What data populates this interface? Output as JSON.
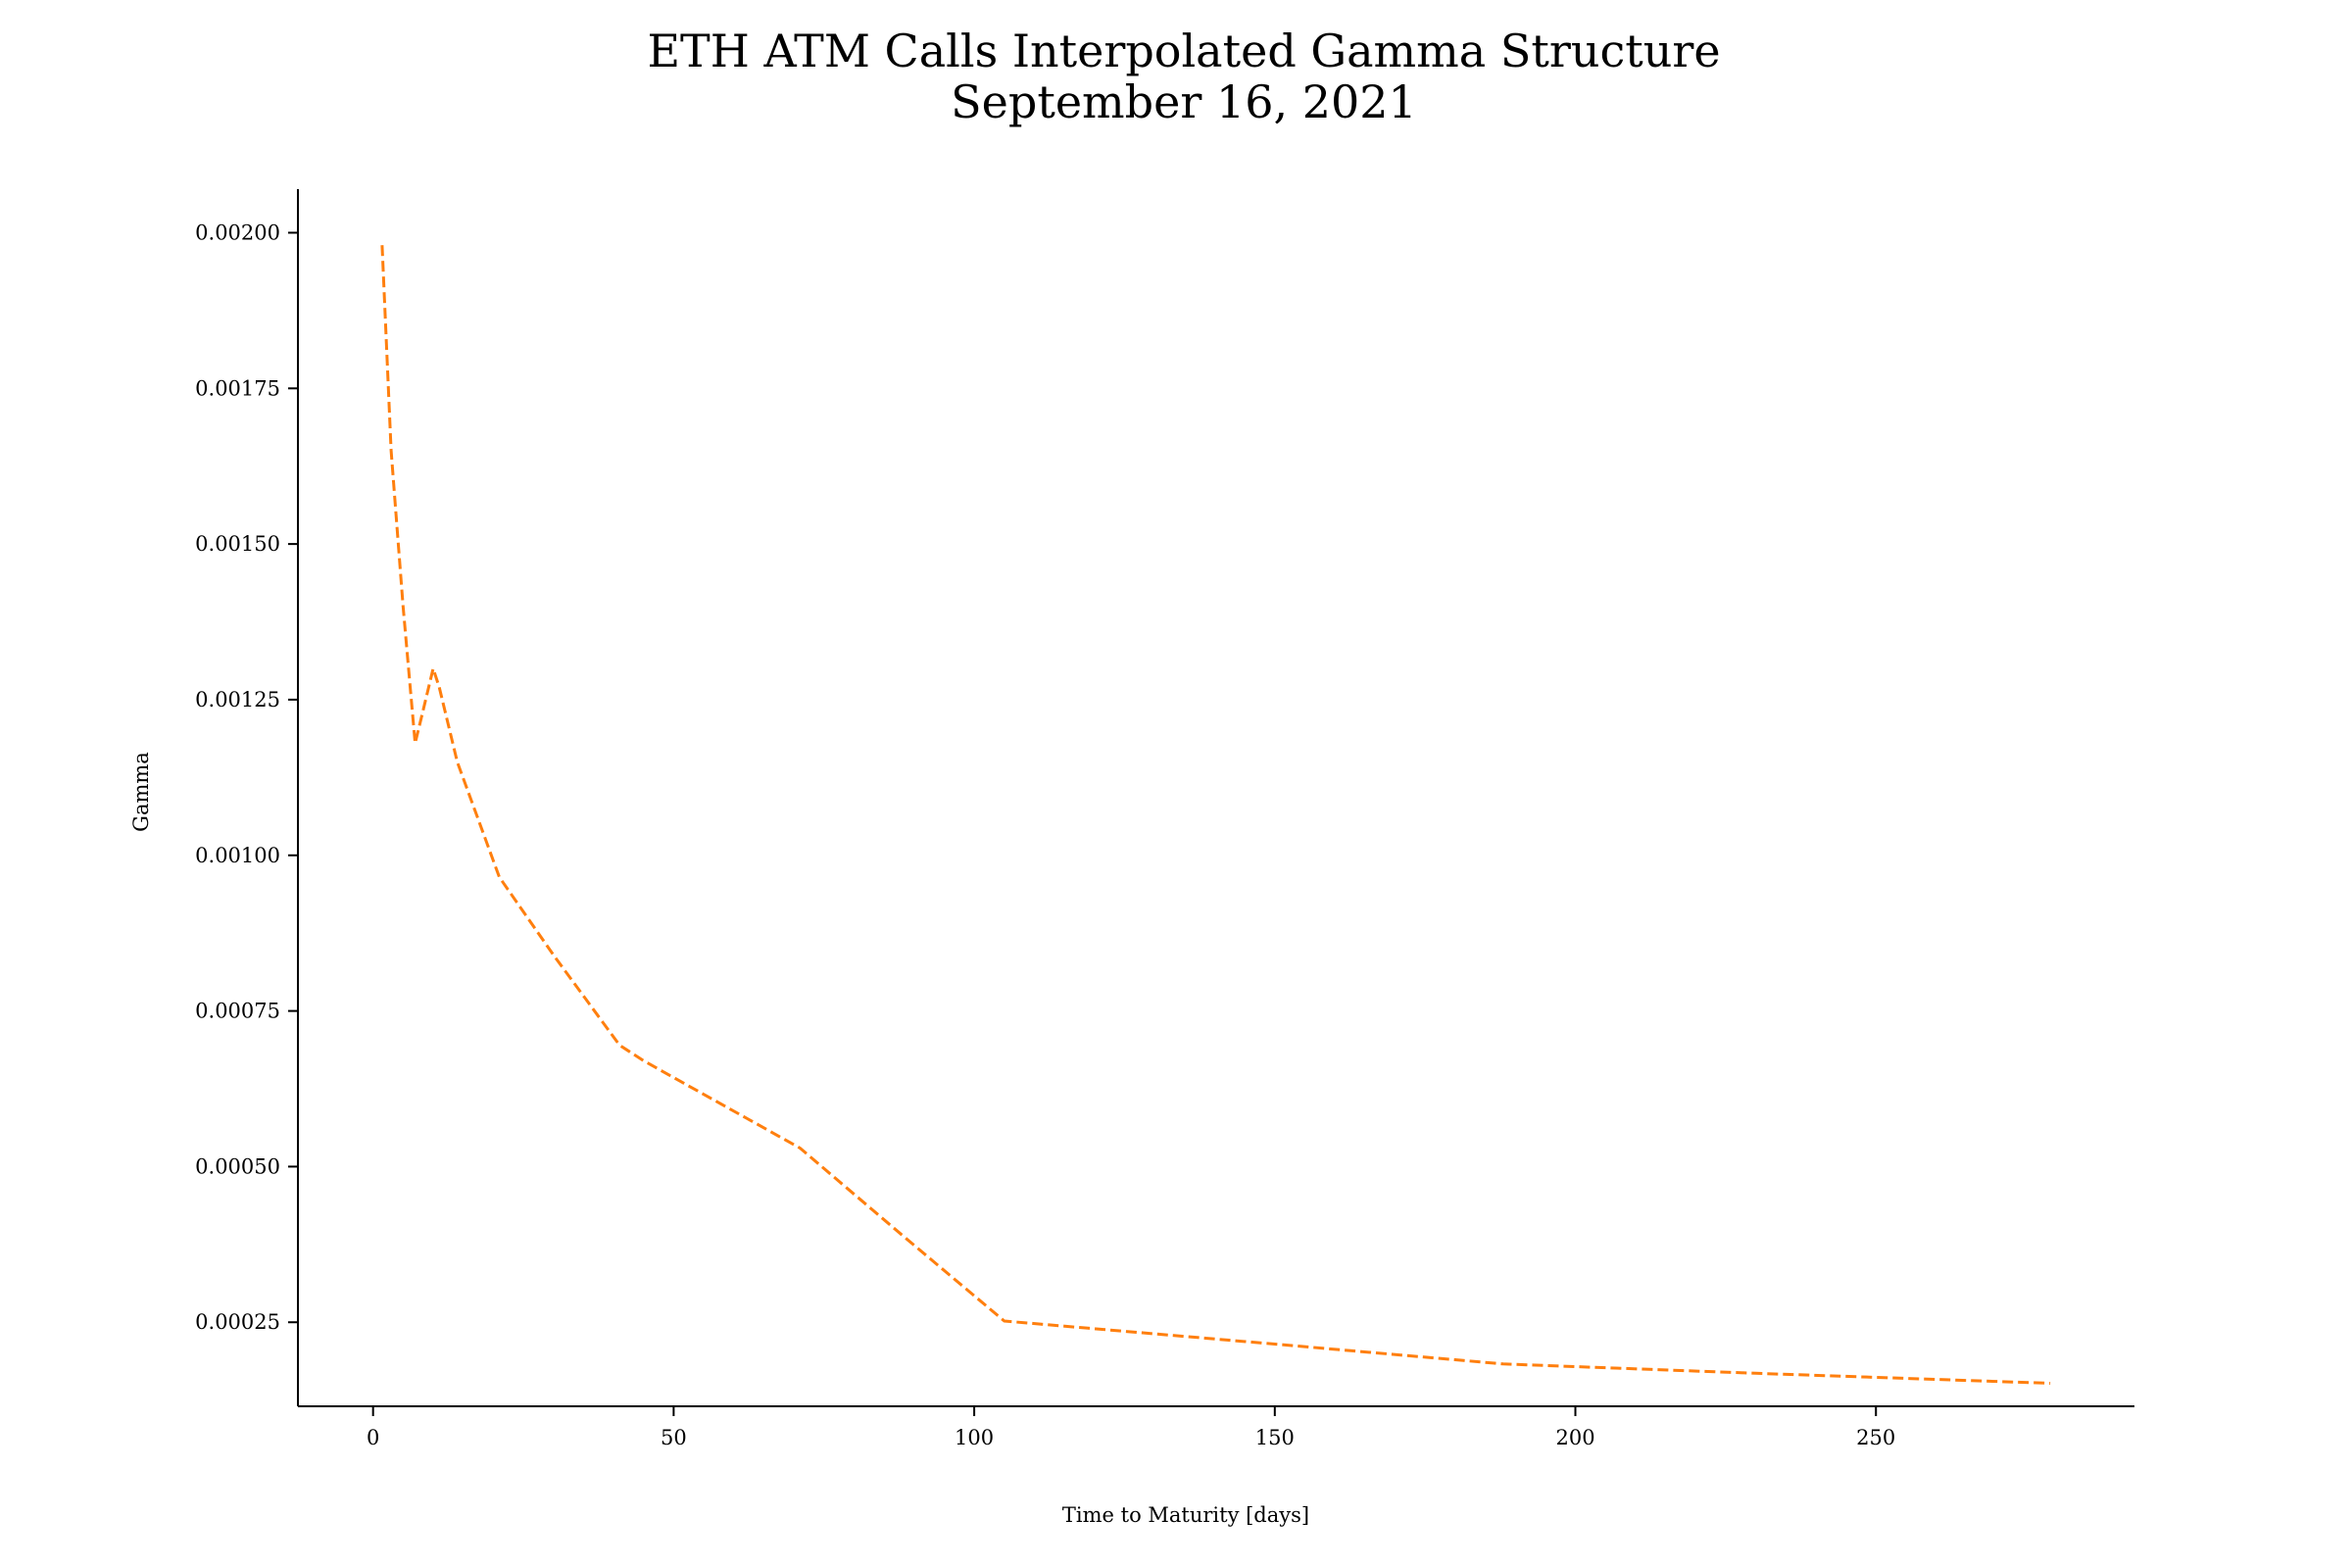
{
  "chart_data": {
    "type": "line",
    "title_line1": "ETH ATM Calls Interpolated Gamma Structure",
    "title_line2": "September 16, 2021",
    "xlabel": "Time to Maturity [days]",
    "ylabel": "Gamma",
    "xlim": [
      -12.5,
      293
    ],
    "ylim": [
      0.000115,
      0.00207
    ],
    "x_ticks": [
      0,
      50,
      100,
      150,
      200,
      250
    ],
    "x_tick_labels": [
      "0",
      "50",
      "100",
      "150",
      "200",
      "250"
    ],
    "y_ticks": [
      0.00025,
      0.0005,
      0.00075,
      0.001,
      0.00125,
      0.0015,
      0.00175,
      0.002
    ],
    "y_tick_labels": [
      "0.00025",
      "0.00050",
      "0.00075",
      "0.00100",
      "0.00125",
      "0.00150",
      "0.00175",
      "0.00200"
    ],
    "grid": false,
    "series": [
      {
        "name": "Gamma",
        "color": "#ff7f0e",
        "line_style": "dashed",
        "x": [
          1.5,
          3,
          5,
          7,
          8,
          10,
          11,
          14,
          21,
          30,
          41,
          45,
          71,
          88,
          105,
          150,
          188,
          230,
          279
        ],
        "y": [
          0.00198,
          0.00165,
          0.0014,
          0.00118,
          0.00122,
          0.0013,
          0.00127,
          0.00115,
          0.000965,
          0.00084,
          0.000695,
          0.00067,
          0.00053,
          0.00039,
          0.000252,
          0.000215,
          0.000183,
          0.000168,
          0.000152
        ]
      }
    ]
  }
}
